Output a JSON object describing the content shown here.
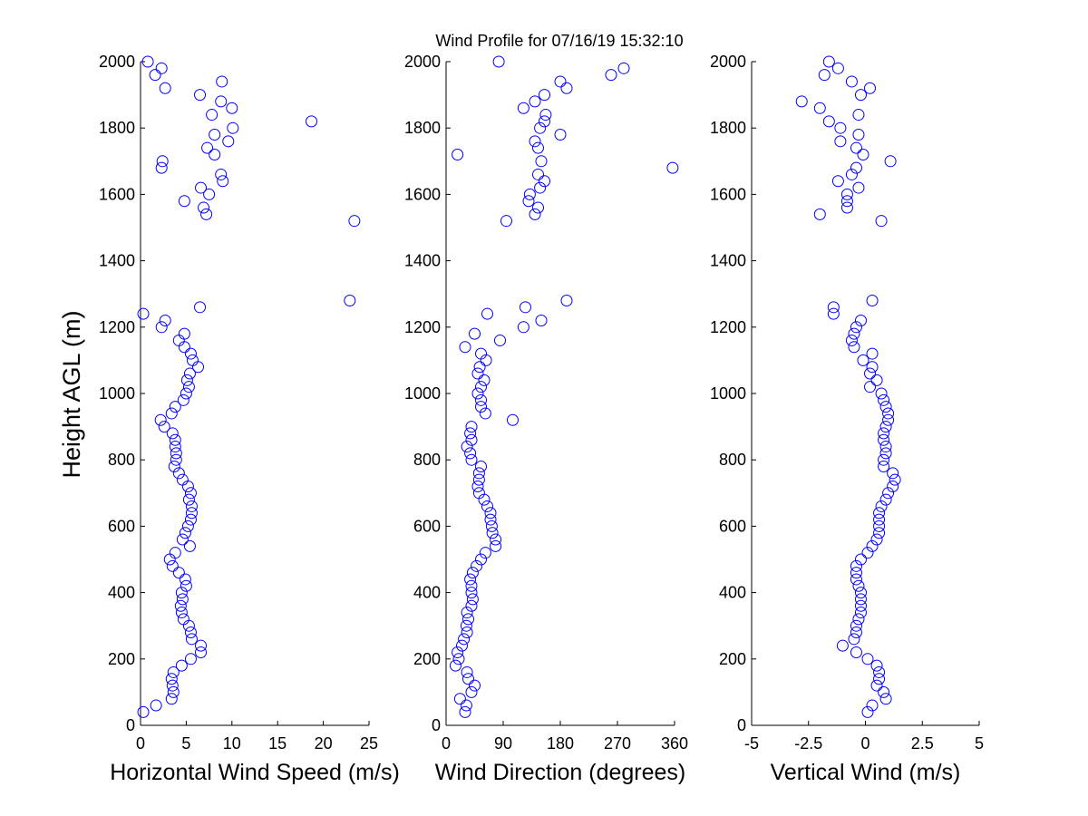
{
  "chart_data": [
    {
      "type": "scatter",
      "title": "Wind Profile for  07/16/19 15:32:10",
      "xlabel": "Horizontal Wind Speed (m/s)",
      "ylabel": "Height AGL (m)",
      "color": "#0000ff",
      "xlim": [
        0,
        25
      ],
      "xticks": [
        0,
        5,
        10,
        15,
        20,
        25
      ],
      "ylim": [
        0,
        2000
      ],
      "yticks": [
        0,
        200,
        400,
        600,
        800,
        1000,
        1200,
        1400,
        1600,
        1800,
        2000
      ],
      "x": [
        0.3,
        1.7,
        3.4,
        3.6,
        3.5,
        3.4,
        3.6,
        4.5,
        5.5,
        6.6,
        6.6,
        5.6,
        5.5,
        5.3,
        4.7,
        4.5,
        4.4,
        4.6,
        4.5,
        5.0,
        4.9,
        4.2,
        3.5,
        3.2,
        3.8,
        5.4,
        4.6,
        4.9,
        5.2,
        5.5,
        5.6,
        5.6,
        5.3,
        5.5,
        5.2,
        4.6,
        4.2,
        3.7,
        3.9,
        3.9,
        3.8,
        3.8,
        3.5,
        2.6,
        2.2,
        3.4,
        3.8,
        4.7,
        5.0,
        5.3,
        5.1,
        5.4,
        6.3,
        5.7,
        5.5,
        4.8,
        4.2,
        4.8,
        2.3,
        2.7,
        0.3,
        6.5,
        22.9,
        23.4,
        7.2,
        6.9,
        4.8,
        7.5,
        6.6,
        9.0,
        8.8,
        2.3,
        2.4,
        8.1,
        7.3,
        9.6,
        8.1,
        10.1,
        18.7,
        7.8,
        10.0,
        8.8,
        6.5,
        2.7,
        8.9,
        1.6,
        2.3,
        0.8
      ],
      "values": [
        40,
        60,
        80,
        100,
        120,
        140,
        160,
        180,
        200,
        220,
        240,
        260,
        280,
        300,
        320,
        340,
        360,
        380,
        400,
        420,
        440,
        460,
        480,
        500,
        520,
        540,
        560,
        580,
        600,
        620,
        640,
        660,
        680,
        700,
        720,
        740,
        760,
        780,
        800,
        820,
        840,
        860,
        880,
        900,
        920,
        940,
        960,
        980,
        1000,
        1020,
        1040,
        1060,
        1080,
        1100,
        1120,
        1140,
        1160,
        1180,
        1200,
        1220,
        1240,
        1260,
        1280,
        1520,
        1540,
        1560,
        1580,
        1600,
        1620,
        1640,
        1660,
        1680,
        1700,
        1720,
        1740,
        1760,
        1780,
        1800,
        1820,
        1840,
        1860,
        1880,
        1900,
        1920,
        1940,
        1960,
        1980,
        2000
      ]
    },
    {
      "type": "scatter",
      "xlabel": "Wind Direction (degrees)",
      "color": "#0000ff",
      "xlim": [
        0,
        360
      ],
      "xticks": [
        0,
        90,
        180,
        270,
        360
      ],
      "ylim": [
        0,
        2000
      ],
      "yticks": [
        0,
        200,
        400,
        600,
        800,
        1000,
        1200,
        1400,
        1600,
        1800,
        2000
      ],
      "x": [
        30,
        32,
        22,
        40,
        45,
        35,
        33,
        15,
        20,
        18,
        25,
        28,
        33,
        32,
        35,
        33,
        40,
        42,
        40,
        40,
        38,
        42,
        48,
        55,
        62,
        78,
        78,
        73,
        72,
        70,
        70,
        65,
        60,
        52,
        50,
        52,
        52,
        55,
        40,
        38,
        33,
        40,
        38,
        40,
        105,
        62,
        55,
        55,
        50,
        55,
        60,
        50,
        53,
        63,
        55,
        30,
        85,
        45,
        122,
        150,
        65,
        125,
        190,
        95,
        140,
        145,
        130,
        132,
        148,
        155,
        145,
        357,
        150,
        18,
        145,
        140,
        180,
        148,
        155,
        157,
        122,
        140,
        155,
        190,
        180,
        260,
        280,
        83
      ],
      "values": [
        40,
        60,
        80,
        100,
        120,
        140,
        160,
        180,
        200,
        220,
        240,
        260,
        280,
        300,
        320,
        340,
        360,
        380,
        400,
        420,
        440,
        460,
        480,
        500,
        520,
        540,
        560,
        580,
        600,
        620,
        640,
        660,
        680,
        700,
        720,
        740,
        760,
        780,
        800,
        820,
        840,
        860,
        880,
        900,
        920,
        940,
        960,
        980,
        1000,
        1020,
        1040,
        1060,
        1080,
        1100,
        1120,
        1140,
        1160,
        1180,
        1200,
        1220,
        1240,
        1260,
        1280,
        1520,
        1540,
        1560,
        1580,
        1600,
        1620,
        1640,
        1660,
        1680,
        1700,
        1720,
        1740,
        1760,
        1780,
        1800,
        1820,
        1840,
        1860,
        1880,
        1900,
        1920,
        1940,
        1960,
        1980,
        2000
      ]
    },
    {
      "type": "scatter",
      "xlabel": "Vertical Wind (m/s)",
      "color": "#0000ff",
      "xlim": [
        -5,
        5
      ],
      "xticks": [
        -5,
        -2.5,
        0,
        2.5,
        5
      ],
      "ylim": [
        0,
        2000
      ],
      "yticks": [
        0,
        200,
        400,
        600,
        800,
        1000,
        1200,
        1400,
        1600,
        1800,
        2000
      ],
      "x": [
        0.1,
        0.3,
        0.9,
        0.8,
        0.5,
        0.6,
        0.6,
        0.5,
        0.1,
        -0.4,
        -1.0,
        -0.5,
        -0.4,
        -0.4,
        -0.3,
        -0.2,
        -0.2,
        -0.2,
        -0.2,
        -0.3,
        -0.4,
        -0.4,
        -0.4,
        -0.2,
        0.1,
        0.3,
        0.5,
        0.6,
        0.6,
        0.6,
        0.6,
        0.7,
        0.9,
        1.0,
        1.2,
        1.3,
        1.2,
        0.8,
        0.8,
        0.9,
        0.9,
        0.8,
        0.8,
        0.9,
        1.0,
        1.0,
        0.9,
        0.8,
        0.7,
        0.2,
        0.5,
        0.2,
        0.3,
        -0.1,
        0.3,
        -0.5,
        -0.6,
        -0.5,
        -0.4,
        -0.2,
        -1.4,
        -1.4,
        0.3,
        0.7,
        -2.0,
        -0.8,
        -0.8,
        -0.8,
        -0.3,
        -1.2,
        -0.6,
        -0.4,
        1.1,
        -0.1,
        -0.4,
        -1.1,
        -0.3,
        -1.1,
        -1.6,
        -0.3,
        -2.0,
        -2.8,
        -0.2,
        0.2,
        -0.6,
        -1.8,
        -1.2,
        -1.6
      ],
      "values": [
        40,
        60,
        80,
        100,
        120,
        140,
        160,
        180,
        200,
        220,
        240,
        260,
        280,
        300,
        320,
        340,
        360,
        380,
        400,
        420,
        440,
        460,
        480,
        500,
        520,
        540,
        560,
        580,
        600,
        620,
        640,
        660,
        680,
        700,
        720,
        740,
        760,
        780,
        800,
        820,
        840,
        860,
        880,
        900,
        920,
        940,
        960,
        980,
        1000,
        1020,
        1040,
        1060,
        1080,
        1100,
        1120,
        1140,
        1160,
        1180,
        1200,
        1220,
        1240,
        1260,
        1280,
        1520,
        1540,
        1560,
        1580,
        1600,
        1620,
        1640,
        1660,
        1680,
        1700,
        1720,
        1740,
        1760,
        1780,
        1800,
        1820,
        1840,
        1860,
        1880,
        1900,
        1920,
        1940,
        1960,
        1980,
        2000
      ]
    }
  ]
}
